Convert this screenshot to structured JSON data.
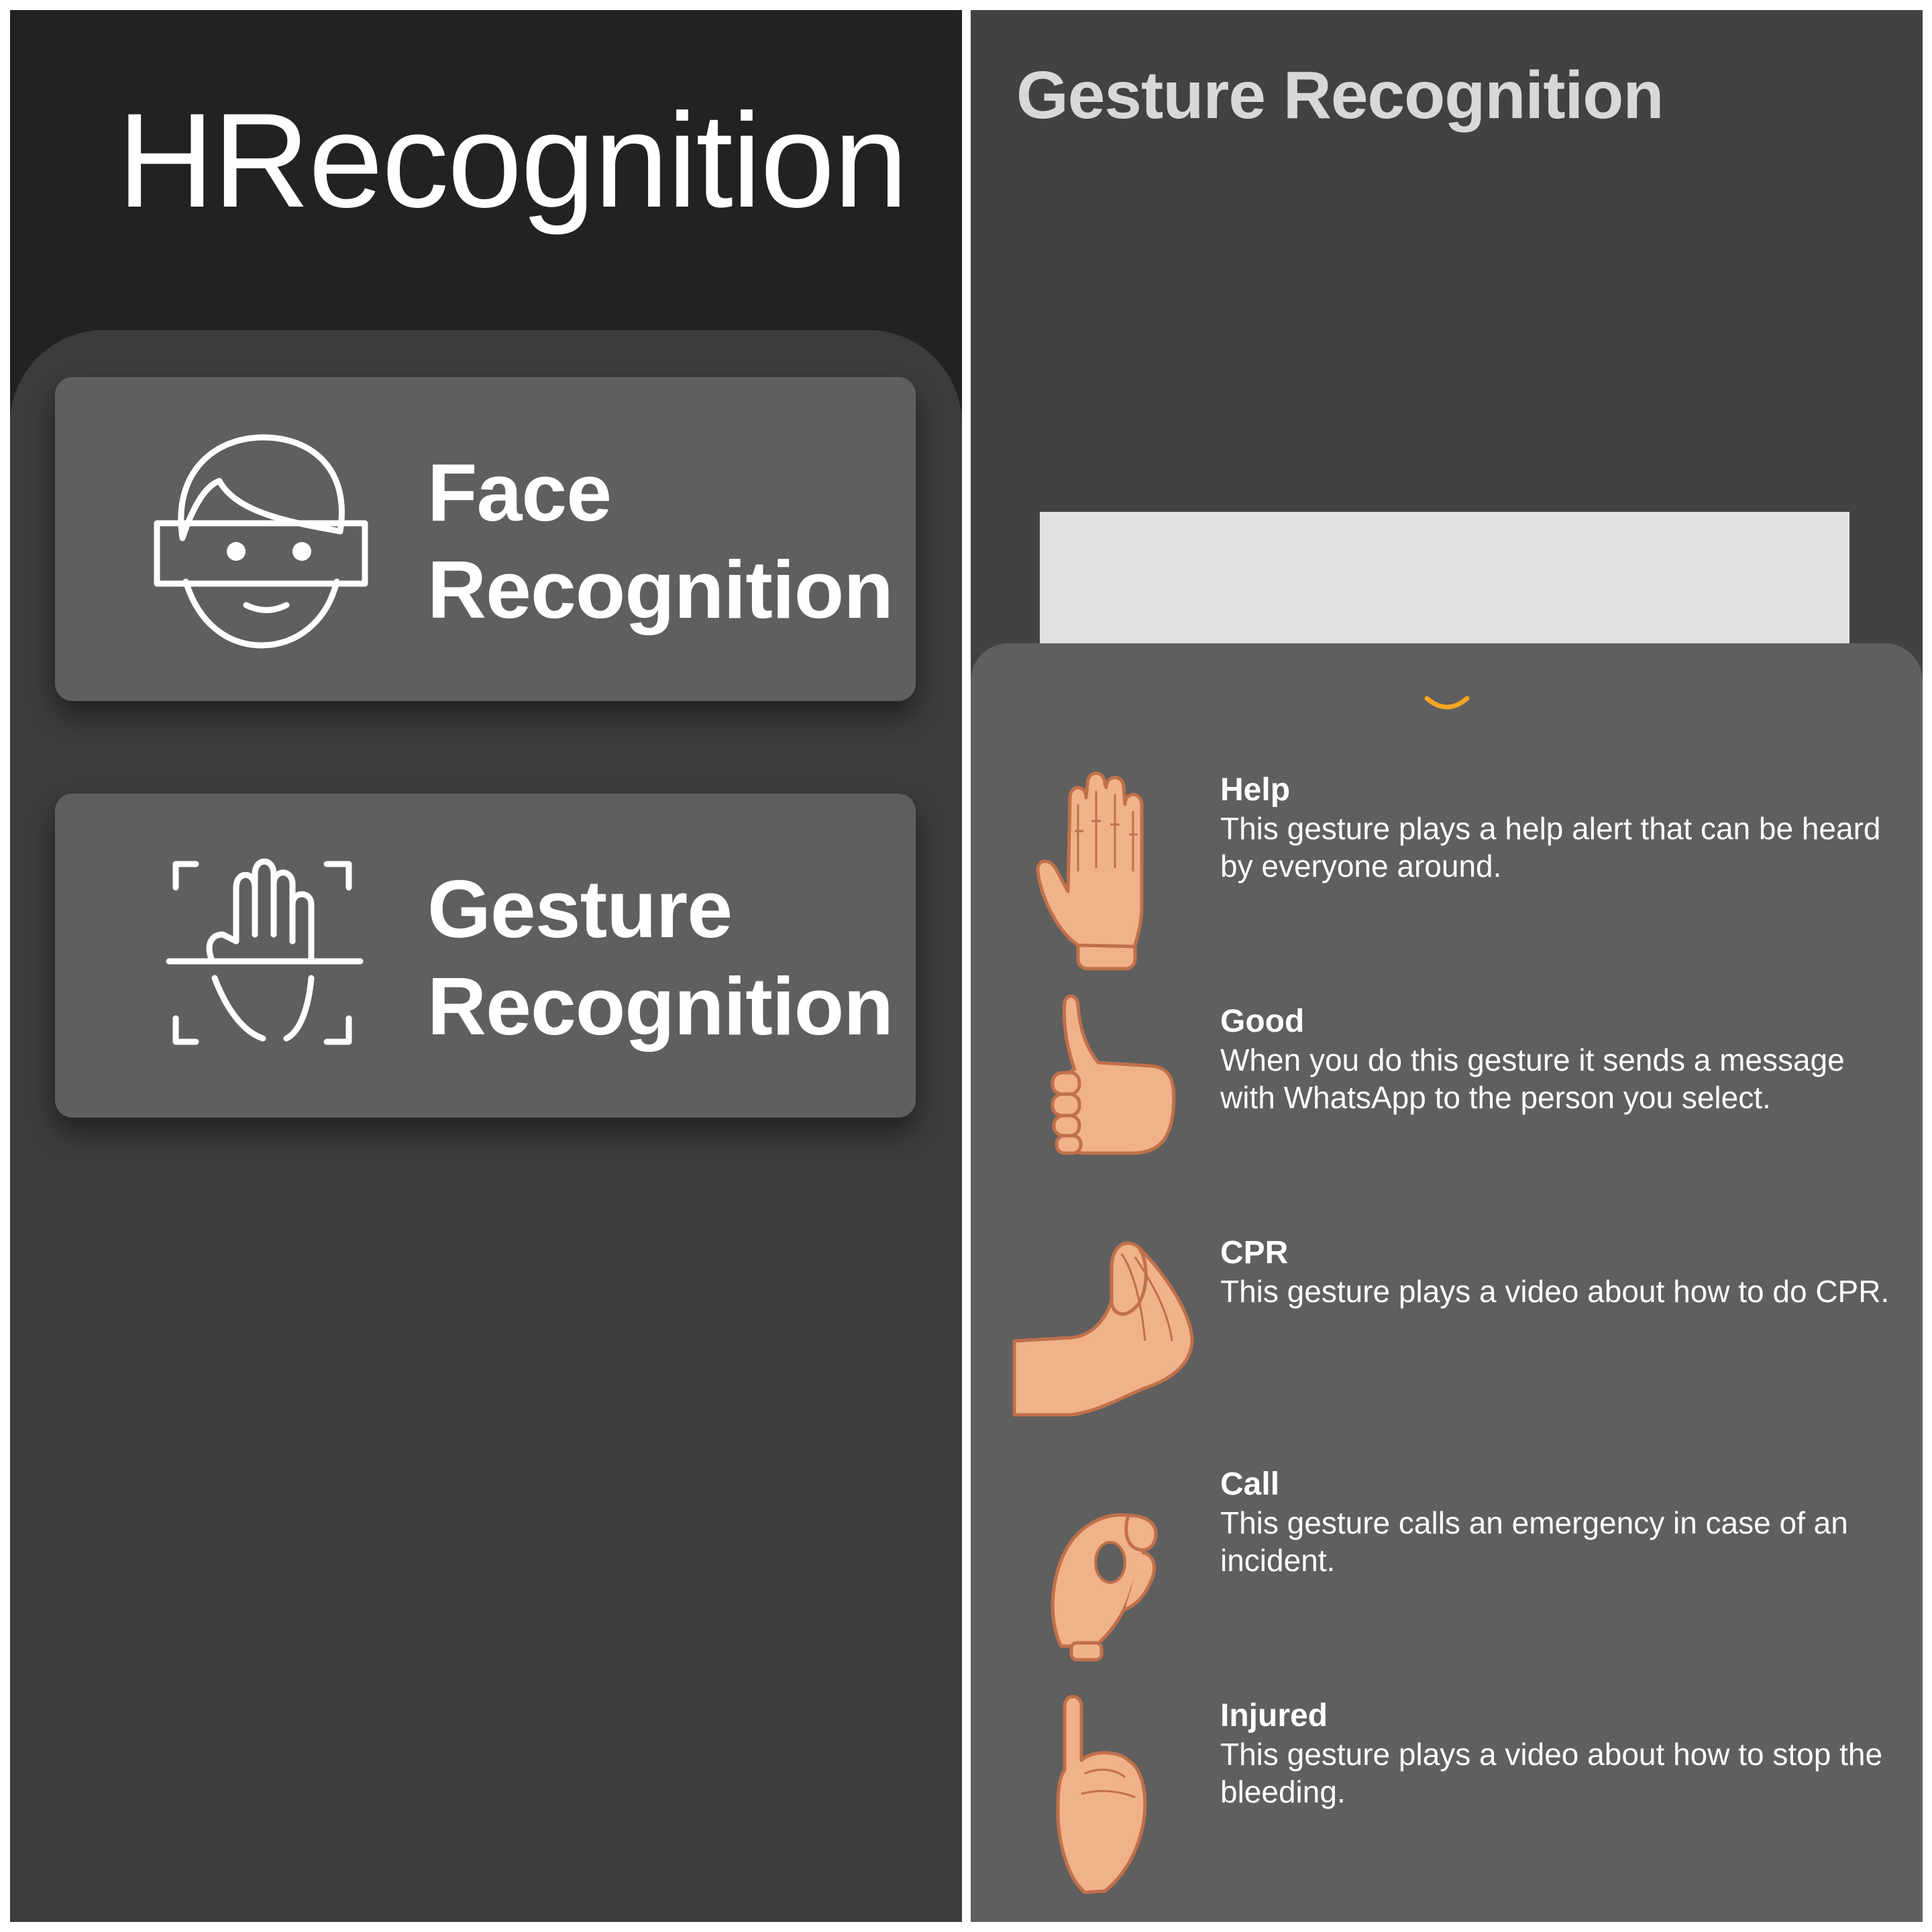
{
  "left_screen": {
    "app_title": "HRecognition",
    "menu": [
      {
        "label_line1": "Face",
        "label_line2": "Recognition",
        "icon": "face-scan-icon"
      },
      {
        "label_line1": "Gesture",
        "label_line2": "Recognition",
        "icon": "hand-scan-icon"
      }
    ]
  },
  "right_screen": {
    "title": "Gesture Recognition",
    "sheet_handle_icon": "chevron-down-icon",
    "accent_color": "#f5a623",
    "gestures": [
      {
        "name": "Help",
        "description": "This gesture plays a help alert that can be heard by everyone around.",
        "icon": "open-palm-hand-icon"
      },
      {
        "name": "Good",
        "description": "When you do this gesture it sends a message with WhatsApp to the person you select.",
        "icon": "thumbs-up-hand-icon"
      },
      {
        "name": "CPR",
        "description": "This gesture plays a video about how to do CPR.",
        "icon": "pinched-fingers-hand-icon"
      },
      {
        "name": "Call",
        "description": "This gesture calls an emergency in case of an incident.",
        "icon": "ok-circle-hand-icon"
      },
      {
        "name": "Injured",
        "description": "This gesture plays a video about how to stop the bleeding.",
        "icon": "pinky-up-hand-icon"
      }
    ]
  },
  "colors": {
    "header_bg": "#222222",
    "panel_bg": "#3c3c3c",
    "card_bg": "#5f5f5f",
    "skin": "#f0b28a",
    "skin_outline": "#c0704a"
  }
}
